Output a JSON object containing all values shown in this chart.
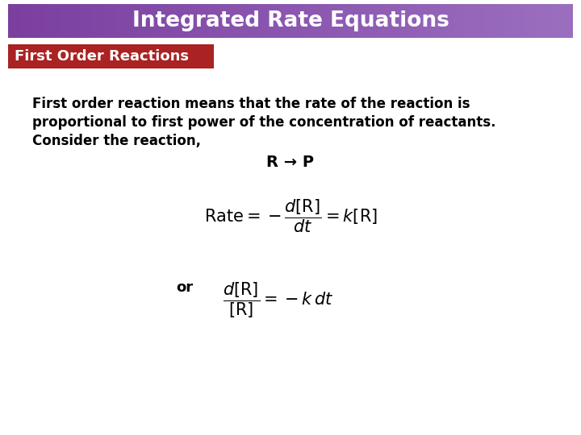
{
  "title": "Integrated Rate Equations",
  "title_bg_left": "#7B3FA0",
  "title_bg_right": "#9B6FC0",
  "title_text_color": "#FFFFFF",
  "subtitle": "First Order Reactions",
  "subtitle_bg_color": "#AA2222",
  "subtitle_text_color": "#FFFFFF",
  "body_bg_color": "#FFFFFF",
  "body_text_color": "#000000",
  "para_line1": "First order reaction means that the rate of the reaction is",
  "para_line2": "proportional to first power of the concentration of reactants.",
  "para_line3": "Consider the reaction,",
  "reaction": "R → P",
  "eq1": "$\\mathrm{Rate} = -\\dfrac{d[\\mathrm{R}]}{dt} = k[\\mathrm{R}]$",
  "eq2_or": "or",
  "eq2": "$\\dfrac{d[\\mathrm{R}]}{[\\mathrm{R}]} = -k\\,dt$"
}
